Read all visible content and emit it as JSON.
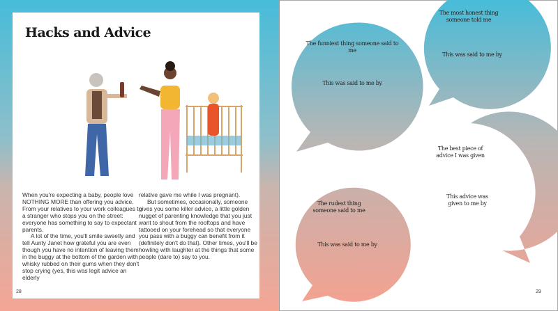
{
  "left_page": {
    "title": "Hacks and Advice",
    "paragraphs": [
      "When you're expecting a baby, people love NOTHING MORE than offering you advice. From your relatives to your work colleagues to a stranger who stops you on the street: everyone has something to say to expectant parents.",
      "A lot of the time, you'll smile sweetly and tell Aunty Janet how grateful you are even though you have no intention of leaving them in the buggy at the bottom of the garden with whisky rubbed on their gums when they don't stop crying (yes, this was legit advice an elderly",
      "relative gave me while I was pregnant).",
      "But sometimes, occasionally, someone gives you some killer advice, a little golden nugget of parenting knowledge that you just want to shout from the rooftops and have tattooed on your forehead so that everyone you pass with a buggy can benefit from it (definitely don't do that). Other times, you'll be howling with laughter at the things that some people (dare to) say to you."
    ],
    "page_number": "28"
  },
  "right_page": {
    "bubbles": [
      {
        "prompt": "The funniest thing someone said to me",
        "by": "This was said to me by"
      },
      {
        "prompt": "The most honest thing someone told me",
        "by": "This was said to me by"
      },
      {
        "prompt": "The best piece of advice I was given",
        "by": "This advice was given to me by"
      },
      {
        "prompt": "The rudest thing someone said to me",
        "by": "This was said to me by"
      }
    ],
    "page_number": "29"
  },
  "colors": {
    "blue": "#47bcd9",
    "grey": "#b9b6b4",
    "salmon": "#f4a594"
  }
}
